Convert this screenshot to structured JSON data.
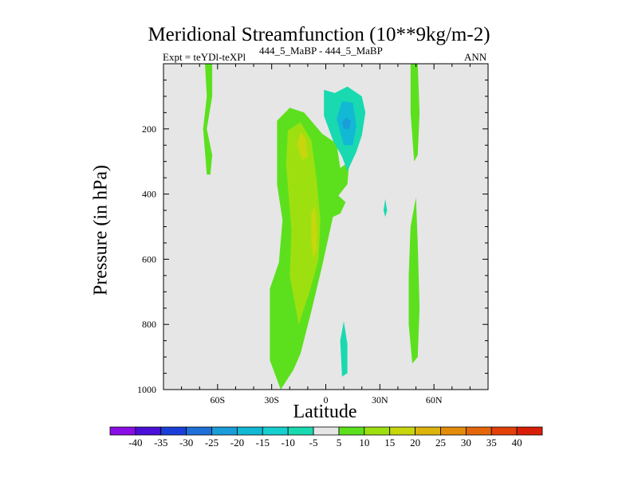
{
  "header": {
    "title": "Meridional Streamfunction (10**9kg/m-2)",
    "left_label": "Expt = teYDl-teXPl",
    "center_label": "444_5_MaBP - 444_5_MaBP",
    "right_label": "ANN"
  },
  "chart_data": {
    "type": "heatmap",
    "title": "Meridional Streamfunction (10**9kg/m-2)",
    "xlabel": "Latitude",
    "ylabel": "Pressure (in hPa)",
    "xlim": [
      -90,
      90
    ],
    "ylim": [
      1000,
      0
    ],
    "x_ticks": [
      {
        "value": -60,
        "label": "60S"
      },
      {
        "value": -30,
        "label": "30S"
      },
      {
        "value": 0,
        "label": "0"
      },
      {
        "value": 30,
        "label": "30N"
      },
      {
        "value": 60,
        "label": "60N"
      }
    ],
    "y_ticks": [
      {
        "value": 200,
        "label": "200"
      },
      {
        "value": 400,
        "label": "400"
      },
      {
        "value": 600,
        "label": "600"
      },
      {
        "value": 800,
        "label": "800"
      },
      {
        "value": 1000,
        "label": "1000"
      }
    ],
    "background_color": "#e6e6e6",
    "colorbar": {
      "levels": [
        "-40",
        "-35",
        "-30",
        "-25",
        "-20",
        "-15",
        "-10",
        "-5",
        "5",
        "10",
        "15",
        "20",
        "25",
        "30",
        "35",
        "40"
      ],
      "colors": [
        "#8a0de6",
        "#4b0ed8",
        "#1a3fd9",
        "#1f6fd9",
        "#1a9dd9",
        "#11b9d4",
        "#16cfcf",
        "#19d9b0",
        "#e6e6e6",
        "#5ce01e",
        "#9ee00f",
        "#c8d60e",
        "#dcb40c",
        "#e38d0b",
        "#e4660a",
        "#e3400a",
        "#d91e07"
      ]
    },
    "regions": [
      {
        "name": "southern-cell-outer",
        "level": 5,
        "color": "#5ce01e",
        "points": [
          [
            -25,
            1000
          ],
          [
            -31,
            910
          ],
          [
            -31,
            690
          ],
          [
            -26,
            610
          ],
          [
            -24,
            480
          ],
          [
            -27,
            370
          ],
          [
            -27,
            175
          ],
          [
            -20,
            135
          ],
          [
            -12,
            150
          ],
          [
            -2,
            215
          ],
          [
            6,
            245
          ],
          [
            8,
            320
          ],
          [
            13,
            300
          ],
          [
            12,
            370
          ],
          [
            7,
            405
          ],
          [
            11,
            425
          ],
          [
            8,
            460
          ],
          [
            4,
            470
          ],
          [
            -2,
            620
          ],
          [
            -8,
            760
          ],
          [
            -14,
            890
          ],
          [
            -18,
            940
          ]
        ]
      },
      {
        "name": "southern-cell-inner",
        "level": 10,
        "color": "#9ee00f",
        "points": [
          [
            -15,
            800
          ],
          [
            -20,
            650
          ],
          [
            -19,
            510
          ],
          [
            -22,
            310
          ],
          [
            -21,
            205
          ],
          [
            -14,
            180
          ],
          [
            -8,
            235
          ],
          [
            -5,
            360
          ],
          [
            -3,
            480
          ],
          [
            -4,
            600
          ],
          [
            -9,
            700
          ]
        ]
      },
      {
        "name": "southern-cell-core-upper",
        "level": 15,
        "color": "#c8d60e",
        "points": [
          [
            -13,
            295
          ],
          [
            -16,
            250
          ],
          [
            -14,
            210
          ],
          [
            -11,
            230
          ],
          [
            -10,
            285
          ]
        ]
      },
      {
        "name": "southern-cell-core-lower",
        "level": 15,
        "color": "#c8d60e",
        "points": [
          [
            -7,
            595
          ],
          [
            -8,
            540
          ],
          [
            -8,
            460
          ],
          [
            -6,
            435
          ],
          [
            -5,
            500
          ],
          [
            -5,
            575
          ]
        ]
      },
      {
        "name": "northern-cell-outer",
        "level": -5,
        "color": "#19d9b0",
        "points": [
          [
            -1,
            0
          ],
          [
            -1,
            80
          ],
          [
            5,
            90
          ],
          [
            12,
            70
          ],
          [
            20,
            100
          ],
          [
            22,
            150
          ],
          [
            20,
            220
          ],
          [
            17,
            270
          ],
          [
            12,
            330
          ],
          [
            9,
            285
          ],
          [
            4,
            235
          ],
          [
            -1,
            160
          ]
        ]
      },
      {
        "name": "northern-cell-mid",
        "level": -10,
        "color": "#11b9d4",
        "points": [
          [
            6,
            170
          ],
          [
            9,
            115
          ],
          [
            15,
            120
          ],
          [
            17,
            190
          ],
          [
            15,
            250
          ],
          [
            10,
            250
          ]
        ]
      },
      {
        "name": "northern-cell-core",
        "level": -15,
        "color": "#1a9dd9",
        "points": [
          [
            9,
            180
          ],
          [
            11,
            165
          ],
          [
            14,
            175
          ],
          [
            13,
            200
          ],
          [
            10,
            200
          ]
        ]
      },
      {
        "name": "mid-lat-south-strip",
        "level": 5,
        "color": "#5ce01e",
        "points": [
          [
            -67,
            0
          ],
          [
            -63,
            0
          ],
          [
            -63,
            100
          ],
          [
            -66,
            200
          ],
          [
            -63,
            280
          ],
          [
            -64,
            340
          ],
          [
            -66,
            340
          ],
          [
            -68,
            200
          ],
          [
            -66,
            100
          ]
        ]
      },
      {
        "name": "mid-lat-north-strip-upper",
        "level": 5,
        "color": "#5ce01e",
        "points": [
          [
            47,
            0
          ],
          [
            51,
            0
          ],
          [
            52,
            150
          ],
          [
            51,
            280
          ],
          [
            49,
            300
          ],
          [
            47,
            150
          ]
        ]
      },
      {
        "name": "mid-lat-north-strip-lower",
        "level": 5,
        "color": "#5ce01e",
        "points": [
          [
            48,
            920
          ],
          [
            51,
            900
          ],
          [
            52,
            750
          ],
          [
            51,
            550
          ],
          [
            50,
            410
          ],
          [
            47,
            500
          ],
          [
            46,
            650
          ],
          [
            46,
            800
          ]
        ]
      },
      {
        "name": "tropical-low-patch",
        "level": -5,
        "color": "#19d9b0",
        "points": [
          [
            9,
            960
          ],
          [
            12,
            950
          ],
          [
            12,
            860
          ],
          [
            10,
            790
          ],
          [
            8,
            850
          ]
        ]
      },
      {
        "name": "small-north-patch",
        "level": -5,
        "color": "#19d9b0",
        "points": [
          [
            32,
            450
          ],
          [
            33,
            415
          ],
          [
            34,
            450
          ],
          [
            33,
            470
          ]
        ]
      }
    ]
  }
}
